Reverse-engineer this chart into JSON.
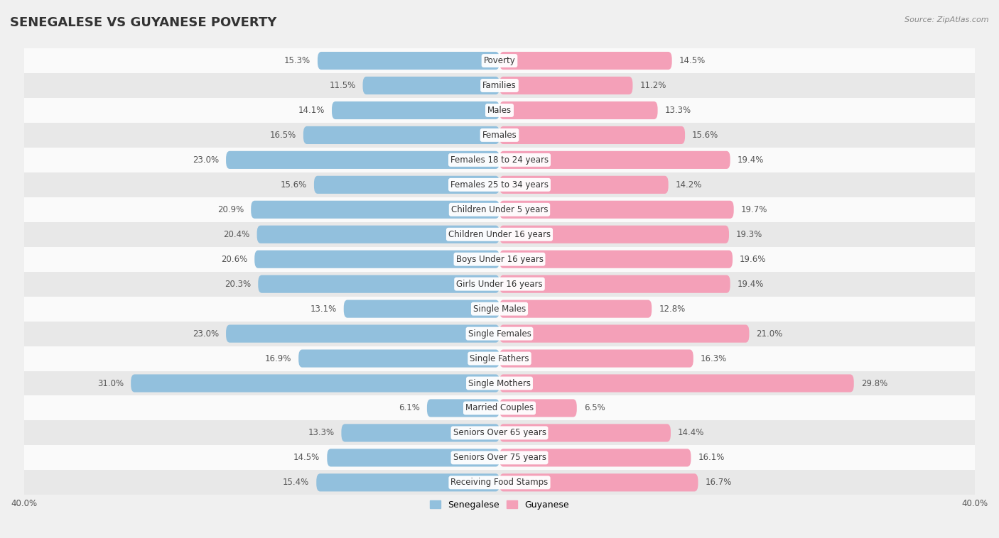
{
  "title": "SENEGALESE VS GUYANESE POVERTY",
  "source": "Source: ZipAtlas.com",
  "categories": [
    "Poverty",
    "Families",
    "Males",
    "Females",
    "Females 18 to 24 years",
    "Females 25 to 34 years",
    "Children Under 5 years",
    "Children Under 16 years",
    "Boys Under 16 years",
    "Girls Under 16 years",
    "Single Males",
    "Single Females",
    "Single Fathers",
    "Single Mothers",
    "Married Couples",
    "Seniors Over 65 years",
    "Seniors Over 75 years",
    "Receiving Food Stamps"
  ],
  "senegalese": [
    15.3,
    11.5,
    14.1,
    16.5,
    23.0,
    15.6,
    20.9,
    20.4,
    20.6,
    20.3,
    13.1,
    23.0,
    16.9,
    31.0,
    6.1,
    13.3,
    14.5,
    15.4
  ],
  "guyanese": [
    14.5,
    11.2,
    13.3,
    15.6,
    19.4,
    14.2,
    19.7,
    19.3,
    19.6,
    19.4,
    12.8,
    21.0,
    16.3,
    29.8,
    6.5,
    14.4,
    16.1,
    16.7
  ],
  "senegalese_color": "#92c0dd",
  "guyanese_color": "#f4a0b8",
  "background_color": "#f0f0f0",
  "row_bg_odd": "#e8e8e8",
  "row_bg_even": "#fafafa",
  "xlim": 40.0,
  "bar_height": 0.72,
  "title_fontsize": 13,
  "label_fontsize": 8.5,
  "value_fontsize": 8.5,
  "legend_labels": [
    "Senegalese",
    "Guyanese"
  ]
}
